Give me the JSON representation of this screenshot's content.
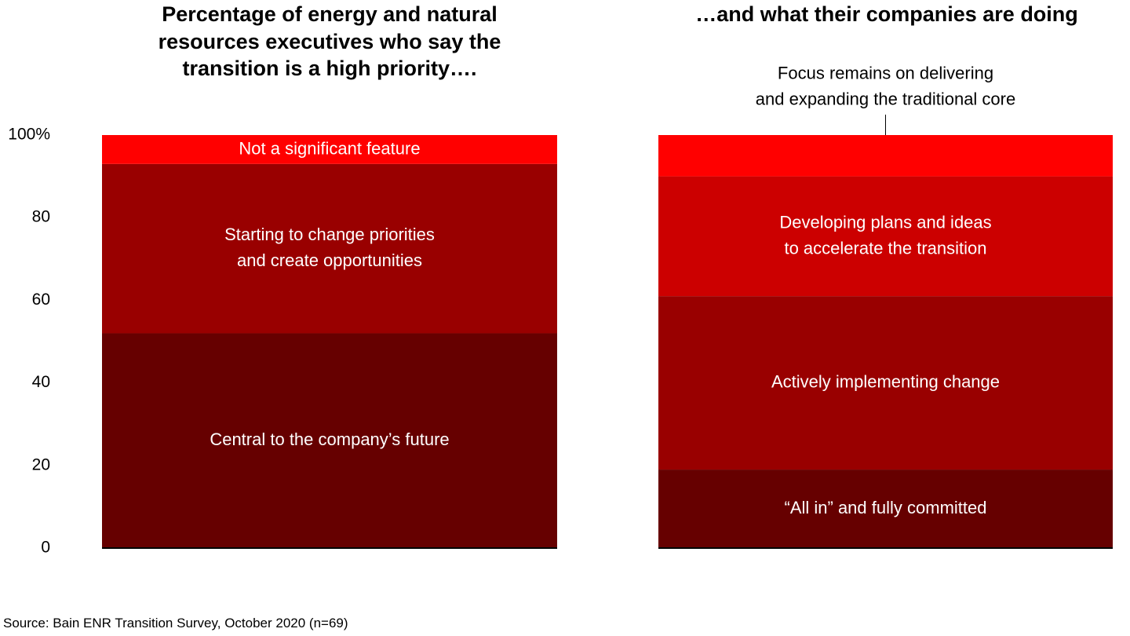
{
  "chart_data": {
    "type": "bar",
    "stacked": true,
    "ylim": [
      0,
      100
    ],
    "yticks": [
      "0",
      "20",
      "40",
      "60",
      "80",
      "100%"
    ],
    "ytick_values": [
      0,
      20,
      40,
      60,
      80,
      100
    ],
    "panels": [
      {
        "title": "Percentage of energy and natural resources executives who say the transition is a high priority….",
        "segments": [
          {
            "name": "Central to the company’s future",
            "value": 52,
            "color": "#660000"
          },
          {
            "name": "Starting to change priorities\nand create opportunities",
            "value": 41,
            "color": "#990000"
          },
          {
            "name": "Not a significant feature",
            "value": 7,
            "color": "#FF0000"
          }
        ]
      },
      {
        "title": "…and what their companies are doing",
        "segments": [
          {
            "name": "“All in” and fully committed",
            "value": 19,
            "color": "#660000"
          },
          {
            "name": "Actively implementing change",
            "value": 42,
            "color": "#990000"
          },
          {
            "name": "Developing plans and ideas\nto accelerate the transition",
            "value": 29,
            "color": "#CC0000"
          },
          {
            "name": "",
            "value": 10,
            "color": "#FF0000"
          }
        ],
        "annotation": "Focus remains on delivering\nand expanding the traditional core"
      }
    ]
  },
  "source": "Source: Bain ENR Transition Survey, October 2020 (n=69)"
}
